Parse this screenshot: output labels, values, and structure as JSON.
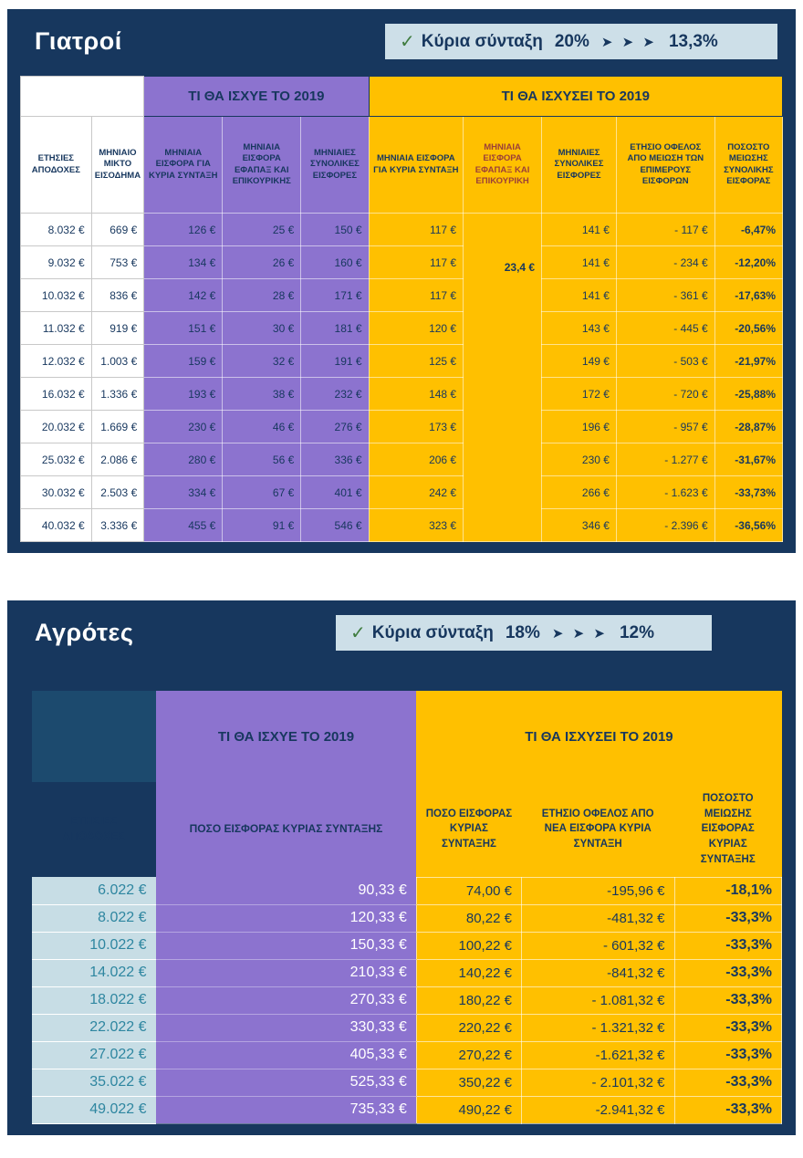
{
  "colors": {
    "panel_navy": "#17375E",
    "purple": "#8C73CF",
    "orange": "#FFC000",
    "banner_blue": "#CDDFE8",
    "farmers_annual_bg": "#C7DDE5",
    "farmers_annual_text": "#2E86A0"
  },
  "doctors": {
    "title": "Γιατροί",
    "banner": {
      "check": "✓",
      "label": "Κύρια σύνταξη",
      "from": "20%",
      "arrows": "➤ ➤ ➤",
      "to": "13,3%"
    },
    "group_old": "ΤΙ ΘΑ ΙΣΧΥΕ ΤΟ 2019",
    "group_new": "ΤΙ ΘΑ ΙΣΧΥΣΕΙ ΤΟ 2019",
    "columns": [
      "ΕΤΗΣΙΕΣ ΑΠΟΔΟΧΕΣ",
      "ΜΗΝΙΑΙΟ ΜΙΚΤΟ ΕΙΣΟΔΗΜΑ",
      "ΜΗΝΙΑΙΑ ΕΙΣΦΟΡΑ ΓΙΑ ΚΥΡΙΑ ΣΥΝΤΑΞΗ",
      "ΜΗΝΙΑΙΑ ΕΙΣΦΟΡΑ ΕΦΑΠΑΞ ΚΑΙ ΕΠΙΚΟΥΡΙΚΗΣ",
      "ΜΗΝΙΑΙΕΣ ΣΥΝΟΛΙΚΕΣ ΕΙΣΦΟΡΕΣ",
      "ΜΗΝΙΑΙΑ ΕΙΣΦΟΡΑ ΓΙΑ ΚΥΡΙΑ ΣΥΝΤΑΞΗ",
      "ΜΗΝΙΑΙΑ ΕΙΣΦΟΡΑ ΕΦΑΠΑΞ ΚΑΙ ΕΠΙΚΟΥΡΙΚΗ",
      "ΜΗΝΙΑΙΕΣ ΣΥΝΟΛΙΚΕΣ ΕΙΣΦΟΡΕΣ",
      "ΕΤΗΣΙΟ ΟΦΕΛΟΣ ΑΠΟ ΜΕΙΩΣΗ ΤΩΝ ΕΠΙΜΕΡΟΥΣ ΕΙΣΦΟΡΩΝ",
      "ΠΟΣΟΣΤΟ ΜΕΙΩΣΗΣ ΣΥΝΟΛΙΚΗΣ ΕΙΣΦΟΡΑΣ"
    ],
    "efapax_value": "23,4 €",
    "rows": [
      [
        "8.032 €",
        "669 €",
        "126 €",
        "25 €",
        "150 €",
        "117 €",
        "141 €",
        "- 117 €",
        "-6,47%"
      ],
      [
        "9.032 €",
        "753 €",
        "134 €",
        "26 €",
        "160 €",
        "117 €",
        "141 €",
        "- 234 €",
        "-12,20%"
      ],
      [
        "10.032 €",
        "836 €",
        "142 €",
        "28 €",
        "171 €",
        "117 €",
        "141 €",
        "- 361 €",
        "-17,63%"
      ],
      [
        "11.032 €",
        "919 €",
        "151 €",
        "30 €",
        "181 €",
        "120 €",
        "143 €",
        "- 445 €",
        "-20,56%"
      ],
      [
        "12.032 €",
        "1.003 €",
        "159 €",
        "32 €",
        "191 €",
        "125 €",
        "149 €",
        "- 503 €",
        "-21,97%"
      ],
      [
        "16.032 €",
        "1.336 €",
        "193 €",
        "38 €",
        "232 €",
        "148 €",
        "172 €",
        "- 720 €",
        "-25,88%"
      ],
      [
        "20.032 €",
        "1.669 €",
        "230 €",
        "46 €",
        "276 €",
        "173 €",
        "196 €",
        "- 957 €",
        "-28,87%"
      ],
      [
        "25.032 €",
        "2.086 €",
        "280 €",
        "56 €",
        "336 €",
        "206 €",
        "230 €",
        "- 1.277 €",
        "-31,67%"
      ],
      [
        "30.032 €",
        "2.503 €",
        "334 €",
        "67 €",
        "401 €",
        "242 €",
        "266 €",
        "- 1.623 €",
        "-33,73%"
      ],
      [
        "40.032 €",
        "3.336 €",
        "455 €",
        "91 €",
        "546 €",
        "323 €",
        "346 €",
        "- 2.396 €",
        "-36,56%"
      ]
    ]
  },
  "farmers": {
    "title": "Αγρότες",
    "banner": {
      "check": "✓",
      "label": "Κύρια σύνταξη",
      "from": "18%",
      "arrows": "➤ ➤ ➤",
      "to": "12%"
    },
    "group_old": "ΤΙ ΘΑ ΙΣΧΥΕ ΤΟ 2019",
    "group_new": "ΤΙ ΘΑ ΙΣΧΥΣΕΙ ΤΟ 2019",
    "columns": [
      "ΕΤΗΣΙΕΣ ΑΠΟΔΟΧΕΣ",
      "ΠΟΣΟ ΕΙΣΦΟΡΑΣ ΚΥΡΙΑΣ ΣΥΝΤΑΞΗΣ",
      "ΠΟΣΟ ΕΙΣΦΟΡΑΣ ΚΥΡΙΑΣ ΣΥΝΤΑΞΗΣ",
      "ΕΤΗΣΙΟ ΟΦΕΛΟΣ ΑΠΟ ΝΕΑ ΕΙΣΦΟΡΑ ΚΥΡΙΑ ΣΥΝΤΑΞΗ",
      "ΠΟΣΟΣΤΟ ΜΕΙΩΣΗΣ ΕΙΣΦΟΡΑΣ ΚΥΡΙΑΣ ΣΥΝΤΑΞΗΣ"
    ],
    "rows": [
      [
        "6.022 €",
        "90,33 €",
        "74,00 €",
        "-195,96 €",
        "-18,1%"
      ],
      [
        "8.022 €",
        "120,33 €",
        "80,22 €",
        "-481,32 €",
        "-33,3%"
      ],
      [
        "10.022 €",
        "150,33 €",
        "100,22 €",
        "- 601,32 €",
        "-33,3%"
      ],
      [
        "14.022 €",
        "210,33 €",
        "140,22 €",
        "-841,32 €",
        "-33,3%"
      ],
      [
        "18.022 €",
        "270,33 €",
        "180,22 €",
        "- 1.081,32 €",
        "-33,3%"
      ],
      [
        "22.022 €",
        "330,33 €",
        "220,22 €",
        "- 1.321,32 €",
        "-33,3%"
      ],
      [
        "27.022 €",
        "405,33 €",
        "270,22 €",
        "-1.621,32 €",
        "-33,3%"
      ],
      [
        "35.022 €",
        "525,33 €",
        "350,22 €",
        "- 2.101,32 €",
        "-33,3%"
      ],
      [
        "49.022 €",
        "735,33 €",
        "490,22 €",
        "-2.941,32 €",
        "-33,3%"
      ]
    ]
  }
}
